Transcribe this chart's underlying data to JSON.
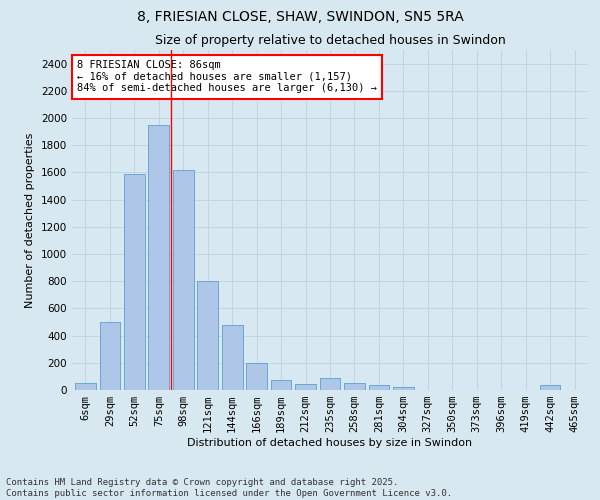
{
  "title1": "8, FRIESIAN CLOSE, SHAW, SWINDON, SN5 5RA",
  "title2": "Size of property relative to detached houses in Swindon",
  "xlabel": "Distribution of detached houses by size in Swindon",
  "ylabel": "Number of detached properties",
  "categories": [
    "6sqm",
    "29sqm",
    "52sqm",
    "75sqm",
    "98sqm",
    "121sqm",
    "144sqm",
    "166sqm",
    "189sqm",
    "212sqm",
    "235sqm",
    "258sqm",
    "281sqm",
    "304sqm",
    "327sqm",
    "350sqm",
    "373sqm",
    "396sqm",
    "419sqm",
    "442sqm",
    "465sqm"
  ],
  "values": [
    55,
    500,
    1590,
    1950,
    1620,
    800,
    480,
    195,
    75,
    45,
    85,
    55,
    35,
    20,
    0,
    0,
    0,
    0,
    0,
    35,
    0
  ],
  "bar_color": "#aec6e8",
  "bar_edge_color": "#5a9fd4",
  "vline_x_index": 3,
  "vline_color": "red",
  "annotation_text": "8 FRIESIAN CLOSE: 86sqm\n← 16% of detached houses are smaller (1,157)\n84% of semi-detached houses are larger (6,130) →",
  "annotation_box_color": "white",
  "annotation_box_edge_color": "red",
  "ylim": [
    0,
    2500
  ],
  "yticks": [
    0,
    200,
    400,
    600,
    800,
    1000,
    1200,
    1400,
    1600,
    1800,
    2000,
    2200,
    2400
  ],
  "grid_color": "#c0d4e4",
  "background_color": "#d8e8f0",
  "plot_bg_color": "#d8e8f0",
  "footer": "Contains HM Land Registry data © Crown copyright and database right 2025.\nContains public sector information licensed under the Open Government Licence v3.0.",
  "title_fontsize": 10,
  "subtitle_fontsize": 9,
  "axis_label_fontsize": 8,
  "tick_fontsize": 7.5,
  "footer_fontsize": 6.5
}
